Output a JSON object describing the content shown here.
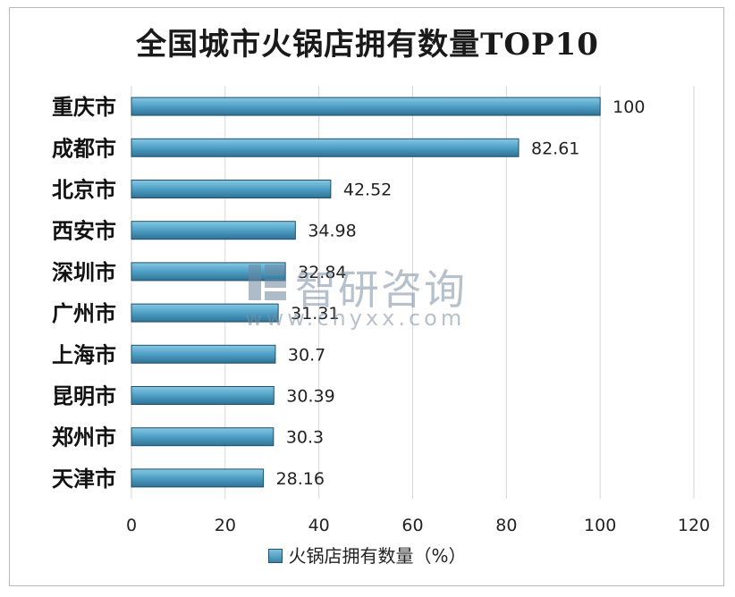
{
  "chart_data": {
    "type": "bar",
    "orientation": "horizontal",
    "title": "全国城市火锅店拥有数量TOP10",
    "categories": [
      "重庆市",
      "成都市",
      "北京市",
      "西安市",
      "深圳市",
      "广州市",
      "上海市",
      "昆明市",
      "郑州市",
      "天津市"
    ],
    "values": [
      100,
      82.61,
      42.52,
      34.98,
      32.84,
      31.31,
      30.7,
      30.39,
      30.3,
      28.16
    ],
    "value_labels": [
      "100",
      "82.61",
      "42.52",
      "34.98",
      "32.84",
      "31.31",
      "30.7",
      "30.39",
      "30.3",
      "28.16"
    ],
    "xlim": [
      0,
      120
    ],
    "xticks": [
      "0",
      "20",
      "40",
      "60",
      "80",
      "100",
      "120"
    ],
    "grid": "vertical",
    "legend": {
      "position": "bottom",
      "series_name": "火锅店拥有数量（%）"
    },
    "bar_color": "#4a9cc2"
  },
  "watermark": {
    "brand": "智研咨询",
    "url": "www.chyxx.com"
  }
}
